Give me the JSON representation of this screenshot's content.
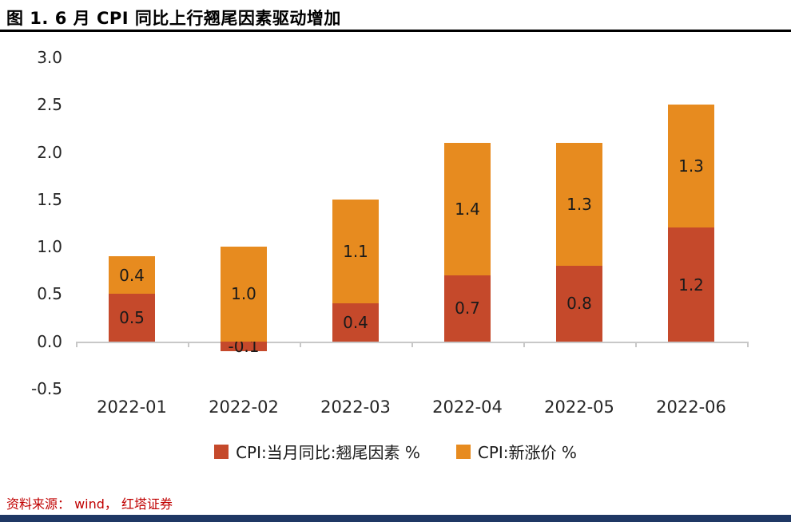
{
  "title": "图 1. 6 月 CPI 同比上行翘尾因素驱动增加",
  "source": "资料来源： wind， 红塔证券",
  "colors": {
    "carryover_series": "#C5492B",
    "new_price_series": "#E78B1F",
    "bottom_bar": "#1F3864",
    "axis_line": "#C8C8C8",
    "source_text": "#C00000"
  },
  "chart_data": {
    "type": "bar",
    "stacked": true,
    "title": "图 1. 6 月 CPI 同比上行翘尾因素驱动增加",
    "categories": [
      "2022-01",
      "2022-02",
      "2022-03",
      "2022-04",
      "2022-05",
      "2022-06"
    ],
    "series": [
      {
        "name": "CPI:当月同比:翘尾因素 %",
        "color": "#C5492B",
        "values": [
          0.5,
          -0.1,
          0.4,
          0.7,
          0.8,
          1.2
        ]
      },
      {
        "name": "CPI:新涨价 %",
        "color": "#E78B1F",
        "values": [
          0.4,
          1.0,
          1.1,
          1.4,
          1.3,
          1.3
        ]
      }
    ],
    "totals": [
      0.9,
      0.9,
      1.5,
      2.1,
      2.1,
      2.5
    ],
    "ylim": [
      -0.5,
      3.0
    ],
    "yticks": [
      3.0,
      2.5,
      2.0,
      1.5,
      1.0,
      0.5,
      0.0,
      -0.5
    ],
    "xlabel": "",
    "ylabel": "",
    "grid": false,
    "value_labels": true,
    "legend_position": "bottom"
  }
}
